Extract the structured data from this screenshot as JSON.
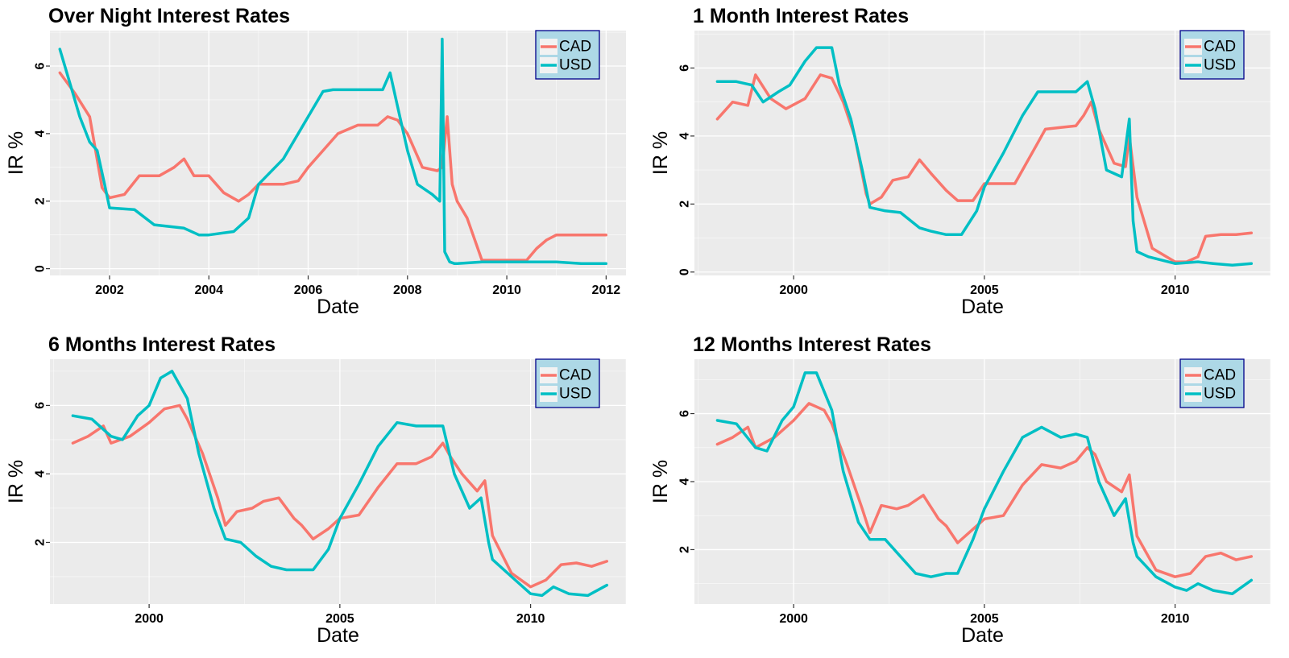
{
  "colors": {
    "CAD": "#F8766D",
    "USD": "#00BFC4",
    "panel_bg": "#EBEBEB",
    "grid": "#FFFFFF",
    "legend_bg": "#ADD8E6",
    "legend_border": "#00008B"
  },
  "chart_data": [
    {
      "type": "line",
      "title": "Over Night Interest Rates",
      "xlabel": "Date",
      "ylabel": "IR %",
      "xlim": [
        2000.8,
        2012.4
      ],
      "ylim": [
        -0.2,
        7.05
      ],
      "x_ticks": [
        2002,
        2004,
        2006,
        2008,
        2010,
        2012
      ],
      "y_ticks": [
        0,
        2,
        4,
        6
      ],
      "legend_position": "top-right",
      "grid": true,
      "series": [
        {
          "name": "CAD",
          "x": [
            2001.0,
            2001.3,
            2001.6,
            2001.85,
            2002.0,
            2002.3,
            2002.6,
            2003.0,
            2003.3,
            2003.5,
            2003.7,
            2004.0,
            2004.3,
            2004.6,
            2004.8,
            2005.0,
            2005.5,
            2005.8,
            2006.0,
            2006.3,
            2006.6,
            2007.0,
            2007.4,
            2007.6,
            2007.8,
            2008.0,
            2008.3,
            2008.6,
            2008.7,
            2008.8,
            2008.9,
            2009.0,
            2009.2,
            2009.5,
            2010.0,
            2010.4,
            2010.6,
            2010.8,
            2011.0,
            2011.5,
            2012.0
          ],
          "values": [
            5.8,
            5.2,
            4.5,
            2.4,
            2.1,
            2.2,
            2.75,
            2.75,
            3.0,
            3.25,
            2.75,
            2.75,
            2.25,
            2.0,
            2.2,
            2.5,
            2.5,
            2.6,
            3.0,
            3.5,
            4.0,
            4.25,
            4.25,
            4.5,
            4.4,
            4.0,
            3.0,
            2.9,
            3.0,
            4.5,
            2.5,
            2.0,
            1.5,
            0.25,
            0.25,
            0.25,
            0.6,
            0.85,
            1.0,
            1.0,
            1.0
          ]
        },
        {
          "name": "USD",
          "x": [
            2001.0,
            2001.2,
            2001.4,
            2001.6,
            2001.75,
            2001.9,
            2002.0,
            2002.5,
            2002.9,
            2003.5,
            2003.8,
            2004.0,
            2004.5,
            2004.8,
            2005.0,
            2005.5,
            2006.0,
            2006.3,
            2006.5,
            2007.0,
            2007.5,
            2007.65,
            2007.8,
            2008.0,
            2008.2,
            2008.5,
            2008.65,
            2008.7,
            2008.75,
            2008.85,
            2008.95,
            2009.0,
            2009.5,
            2010.0,
            2010.5,
            2011.0,
            2011.5,
            2012.0
          ],
          "values": [
            6.5,
            5.5,
            4.5,
            3.75,
            3.5,
            2.5,
            1.8,
            1.75,
            1.3,
            1.2,
            1.0,
            1.0,
            1.1,
            1.5,
            2.5,
            3.25,
            4.5,
            5.25,
            5.3,
            5.3,
            5.3,
            5.8,
            4.8,
            3.5,
            2.5,
            2.2,
            2.0,
            6.8,
            0.5,
            0.2,
            0.15,
            0.15,
            0.2,
            0.2,
            0.2,
            0.2,
            0.15,
            0.15
          ]
        }
      ]
    },
    {
      "type": "line",
      "title": "1 Month Interest Rates",
      "xlabel": "Date",
      "ylabel": "IR %",
      "xlim": [
        1997.4,
        2012.5
      ],
      "ylim": [
        -0.1,
        7.1
      ],
      "x_ticks": [
        2000,
        2005,
        2010
      ],
      "y_ticks": [
        0,
        2,
        4,
        6
      ],
      "legend_position": "top-right",
      "grid": true,
      "series": [
        {
          "name": "CAD",
          "x": [
            1998.0,
            1998.4,
            1998.8,
            1999.0,
            1999.4,
            1999.8,
            2000.3,
            2000.7,
            2001.0,
            2001.3,
            2001.6,
            2001.9,
            2002.0,
            2002.3,
            2002.6,
            2003.0,
            2003.3,
            2003.6,
            2004.0,
            2004.3,
            2004.7,
            2005.0,
            2005.5,
            2005.8,
            2006.0,
            2006.4,
            2006.6,
            2007.0,
            2007.4,
            2007.6,
            2007.8,
            2008.0,
            2008.4,
            2008.7,
            2008.8,
            2009.0,
            2009.4,
            2010.0,
            2010.3,
            2010.6,
            2010.8,
            2011.2,
            2011.6,
            2012.0
          ],
          "values": [
            4.5,
            5.0,
            4.9,
            5.8,
            5.1,
            4.8,
            5.1,
            5.8,
            5.7,
            5.0,
            4.0,
            2.3,
            2.0,
            2.2,
            2.7,
            2.8,
            3.3,
            2.9,
            2.4,
            2.1,
            2.1,
            2.6,
            2.6,
            2.6,
            3.0,
            3.8,
            4.2,
            4.25,
            4.3,
            4.6,
            5.0,
            4.2,
            3.2,
            3.1,
            4.0,
            2.2,
            0.7,
            0.3,
            0.3,
            0.45,
            1.05,
            1.1,
            1.1,
            1.15
          ]
        },
        {
          "name": "USD",
          "x": [
            1998.0,
            1998.5,
            1998.9,
            1999.2,
            1999.6,
            1999.9,
            2000.3,
            2000.6,
            2001.0,
            2001.2,
            2001.5,
            2001.8,
            2002.0,
            2002.4,
            2002.8,
            2003.3,
            2003.6,
            2004.0,
            2004.4,
            2004.8,
            2005.0,
            2005.5,
            2006.0,
            2006.4,
            2007.0,
            2007.4,
            2007.7,
            2007.9,
            2008.2,
            2008.6,
            2008.8,
            2008.9,
            2009.0,
            2009.3,
            2010.0,
            2010.6,
            2011.0,
            2011.5,
            2012.0
          ],
          "values": [
            5.6,
            5.6,
            5.5,
            5.0,
            5.3,
            5.5,
            6.2,
            6.6,
            6.6,
            5.5,
            4.5,
            3.0,
            1.9,
            1.8,
            1.75,
            1.3,
            1.2,
            1.1,
            1.1,
            1.8,
            2.5,
            3.5,
            4.6,
            5.3,
            5.3,
            5.3,
            5.6,
            4.8,
            3.0,
            2.8,
            4.5,
            1.5,
            0.6,
            0.45,
            0.25,
            0.3,
            0.25,
            0.2,
            0.25
          ]
        }
      ]
    },
    {
      "type": "line",
      "title": "6 Months Interest Rates",
      "xlabel": "Date",
      "ylabel": "IR %",
      "xlim": [
        1997.4,
        2012.5
      ],
      "ylim": [
        0.2,
        7.35
      ],
      "x_ticks": [
        2000,
        2005,
        2010
      ],
      "y_ticks": [
        2,
        4,
        6
      ],
      "legend_position": "top-right",
      "grid": true,
      "series": [
        {
          "name": "CAD",
          "x": [
            1998.0,
            1998.4,
            1998.8,
            1999.0,
            1999.5,
            2000.0,
            2000.4,
            2000.8,
            2001.0,
            2001.4,
            2001.8,
            2002.0,
            2002.3,
            2002.7,
            2003.0,
            2003.4,
            2003.8,
            2004.0,
            2004.3,
            2004.7,
            2005.0,
            2005.5,
            2006.0,
            2006.5,
            2007.0,
            2007.4,
            2007.7,
            2007.9,
            2008.2,
            2008.6,
            2008.8,
            2009.0,
            2009.5,
            2010.0,
            2010.4,
            2010.8,
            2011.2,
            2011.6,
            2012.0
          ],
          "values": [
            4.9,
            5.1,
            5.4,
            4.9,
            5.1,
            5.5,
            5.9,
            6.0,
            5.6,
            4.6,
            3.3,
            2.5,
            2.9,
            3.0,
            3.2,
            3.3,
            2.7,
            2.5,
            2.1,
            2.4,
            2.7,
            2.8,
            3.6,
            4.3,
            4.3,
            4.5,
            4.9,
            4.5,
            4.0,
            3.5,
            3.8,
            2.2,
            1.1,
            0.7,
            0.9,
            1.35,
            1.4,
            1.3,
            1.45
          ]
        },
        {
          "name": "USD",
          "x": [
            1998.0,
            1998.5,
            1999.0,
            1999.3,
            1999.7,
            2000.0,
            2000.3,
            2000.6,
            2001.0,
            2001.3,
            2001.7,
            2002.0,
            2002.4,
            2002.8,
            2003.2,
            2003.6,
            2004.0,
            2004.3,
            2004.7,
            2005.0,
            2005.5,
            2006.0,
            2006.5,
            2007.0,
            2007.4,
            2007.7,
            2008.0,
            2008.4,
            2008.7,
            2008.9,
            2009.0,
            2009.5,
            2010.0,
            2010.3,
            2010.6,
            2011.0,
            2011.5,
            2012.0
          ],
          "values": [
            5.7,
            5.6,
            5.1,
            5.0,
            5.7,
            6.0,
            6.8,
            7.0,
            6.2,
            4.6,
            3.0,
            2.1,
            2.0,
            1.6,
            1.3,
            1.2,
            1.2,
            1.2,
            1.8,
            2.7,
            3.7,
            4.8,
            5.5,
            5.4,
            5.4,
            5.4,
            4.0,
            3.0,
            3.3,
            2.0,
            1.5,
            1.0,
            0.5,
            0.45,
            0.7,
            0.5,
            0.45,
            0.75
          ]
        }
      ]
    },
    {
      "type": "line",
      "title": "12 Months Interest Rates",
      "xlabel": "Date",
      "ylabel": "IR %",
      "xlim": [
        1997.4,
        2012.5
      ],
      "ylim": [
        0.4,
        7.6
      ],
      "x_ticks": [
        2000,
        2005,
        2010
      ],
      "y_ticks": [
        2,
        4,
        6
      ],
      "legend_position": "top-right",
      "grid": true,
      "series": [
        {
          "name": "CAD",
          "x": [
            1998.0,
            1998.4,
            1998.8,
            1999.0,
            1999.5,
            2000.0,
            2000.4,
            2000.8,
            2001.0,
            2001.4,
            2001.8,
            2002.0,
            2002.3,
            2002.7,
            2003.0,
            2003.4,
            2003.8,
            2004.0,
            2004.3,
            2004.7,
            2005.0,
            2005.5,
            2006.0,
            2006.5,
            2007.0,
            2007.4,
            2007.7,
            2007.9,
            2008.2,
            2008.6,
            2008.8,
            2009.0,
            2009.5,
            2010.0,
            2010.4,
            2010.8,
            2011.2,
            2011.6,
            2012.0
          ],
          "values": [
            5.1,
            5.3,
            5.6,
            5.0,
            5.3,
            5.8,
            6.3,
            6.1,
            5.7,
            4.5,
            3.2,
            2.5,
            3.3,
            3.2,
            3.3,
            3.6,
            2.9,
            2.7,
            2.2,
            2.6,
            2.9,
            3.0,
            3.9,
            4.5,
            4.4,
            4.6,
            5.0,
            4.8,
            4.0,
            3.7,
            4.2,
            2.4,
            1.4,
            1.2,
            1.3,
            1.8,
            1.9,
            1.7,
            1.8
          ]
        },
        {
          "name": "USD",
          "x": [
            1998.0,
            1998.5,
            1999.0,
            1999.3,
            1999.7,
            2000.0,
            2000.3,
            2000.6,
            2001.0,
            2001.3,
            2001.7,
            2002.0,
            2002.4,
            2002.8,
            2003.2,
            2003.6,
            2004.0,
            2004.3,
            2004.7,
            2005.0,
            2005.5,
            2006.0,
            2006.5,
            2007.0,
            2007.4,
            2007.7,
            2008.0,
            2008.4,
            2008.7,
            2008.9,
            2009.0,
            2009.5,
            2010.0,
            2010.3,
            2010.6,
            2011.0,
            2011.5,
            2012.0
          ],
          "values": [
            5.8,
            5.7,
            5.0,
            4.9,
            5.8,
            6.2,
            7.2,
            7.2,
            6.1,
            4.3,
            2.8,
            2.3,
            2.3,
            1.8,
            1.3,
            1.2,
            1.3,
            1.3,
            2.3,
            3.2,
            4.3,
            5.3,
            5.6,
            5.3,
            5.4,
            5.3,
            4.0,
            3.0,
            3.5,
            2.2,
            1.8,
            1.2,
            0.9,
            0.8,
            1.0,
            0.8,
            0.7,
            1.1
          ]
        }
      ]
    }
  ]
}
